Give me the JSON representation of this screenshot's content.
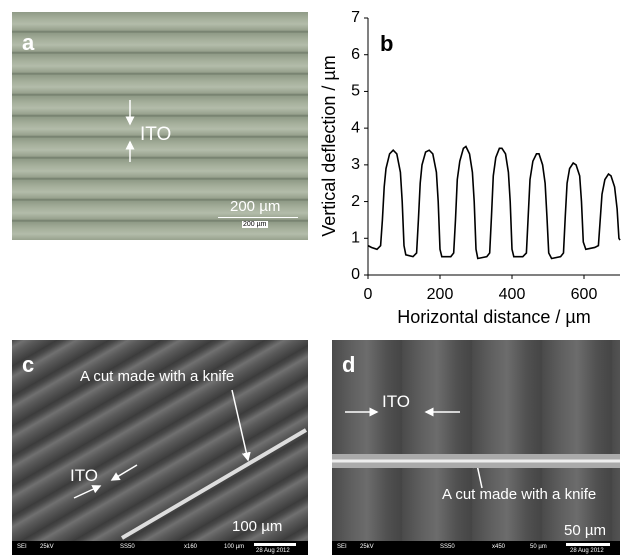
{
  "panels": {
    "a": {
      "label": "a",
      "annotation": "ITO",
      "scale_bar": "200 µm",
      "scale_bar_inset": "200 µm"
    },
    "c": {
      "label": "c",
      "cut_label": "A cut made with a knife",
      "annotation": "ITO",
      "scale_bar": "100 µm",
      "info_bar": [
        "SEI",
        "25kV",
        "SS50",
        "x160",
        "100 µm",
        "28 Aug 2012"
      ]
    },
    "d": {
      "label": "d",
      "annotation": "ITO",
      "cut_label": "A cut made with a knife",
      "scale_bar": "50 µm",
      "info_bar": [
        "SEI",
        "25kV",
        "SS50",
        "x450",
        "50 µm",
        "28 Aug 2012"
      ]
    }
  },
  "chart_data": {
    "type": "line",
    "annotation": "b",
    "xlabel": "Horizontal distance / µm",
    "ylabel": "Vertical deflection / µm",
    "x": [
      0,
      10,
      25,
      35,
      40,
      45,
      50,
      60,
      70,
      80,
      90,
      95,
      100,
      105,
      125,
      135,
      140,
      145,
      150,
      160,
      170,
      180,
      190,
      195,
      200,
      205,
      230,
      238,
      243,
      248,
      255,
      265,
      272,
      282,
      290,
      295,
      300,
      305,
      330,
      338,
      343,
      348,
      355,
      365,
      372,
      382,
      390,
      395,
      400,
      405,
      430,
      440,
      445,
      450,
      458,
      468,
      475,
      485,
      492,
      497,
      502,
      510,
      535,
      543,
      548,
      553,
      560,
      570,
      578,
      588,
      593,
      598,
      605,
      630,
      640,
      645,
      650,
      658,
      668,
      675,
      685,
      692,
      697,
      700
    ],
    "series": [
      {
        "color": "#000000",
        "values": [
          0.8,
          0.75,
          0.7,
          0.8,
          1.5,
          2.4,
          2.9,
          3.3,
          3.4,
          3.3,
          2.8,
          2.0,
          0.8,
          0.55,
          0.5,
          0.6,
          1.5,
          2.5,
          3.0,
          3.35,
          3.4,
          3.3,
          2.8,
          2.0,
          0.7,
          0.5,
          0.5,
          0.6,
          1.5,
          2.6,
          3.1,
          3.45,
          3.5,
          3.3,
          2.8,
          2.0,
          0.7,
          0.45,
          0.5,
          0.6,
          1.6,
          2.7,
          3.2,
          3.45,
          3.45,
          3.3,
          2.8,
          2.0,
          0.7,
          0.5,
          0.5,
          0.6,
          1.6,
          2.6,
          3.1,
          3.3,
          3.3,
          3.0,
          2.5,
          1.6,
          0.6,
          0.45,
          0.5,
          0.6,
          1.6,
          2.5,
          2.9,
          3.05,
          3.0,
          2.7,
          2.0,
          0.9,
          0.7,
          0.75,
          0.8,
          1.5,
          2.2,
          2.6,
          2.75,
          2.7,
          2.4,
          1.8,
          1.0,
          0.95
        ]
      }
    ],
    "xlim": [
      0,
      700
    ],
    "ylim": [
      0,
      7
    ],
    "xticks": [
      0,
      200,
      400,
      600
    ],
    "yticks": [
      0,
      1,
      2,
      3,
      4,
      5,
      6,
      7
    ]
  }
}
